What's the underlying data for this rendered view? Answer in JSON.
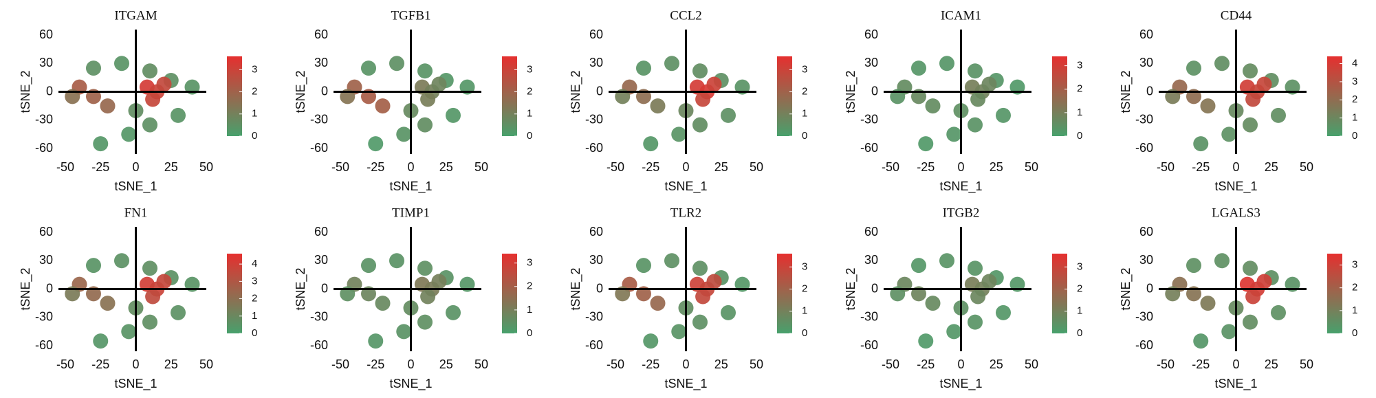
{
  "chart_data": [
    {
      "type": "scatter",
      "title": "ITGAM",
      "xlabel": "tSNE_1",
      "ylabel": "tSNE_2",
      "xlim": [
        -50,
        50
      ],
      "ylim": [
        -60,
        60
      ],
      "xticks": [
        -50,
        -25,
        0,
        25,
        50
      ],
      "yticks": [
        -60,
        -30,
        0,
        30,
        60
      ],
      "clim": [
        0,
        3.6
      ],
      "cticks": [
        0,
        1,
        2,
        3
      ],
      "colors": [
        "#48a06c",
        "#e5302f"
      ],
      "x": [
        -30,
        -10,
        10,
        25,
        40,
        -40,
        -30,
        -20,
        -45,
        8,
        15,
        20,
        12,
        0,
        10,
        -5,
        30,
        -25
      ],
      "y": [
        25,
        30,
        22,
        12,
        5,
        5,
        -5,
        -15,
        -5,
        5,
        0,
        8,
        -8,
        -20,
        -35,
        -45,
        -25,
        -55
      ],
      "values": [
        0.5,
        0.4,
        0.6,
        0.5,
        0.4,
        2.2,
        2.0,
        1.8,
        1.5,
        3.2,
        3.0,
        2.8,
        2.9,
        0.6,
        0.5,
        0.3,
        0.4,
        0.3
      ]
    },
    {
      "type": "scatter",
      "title": "TGFB1",
      "xlabel": "tSNE_1",
      "ylabel": "tSNE_2",
      "xlim": [
        -50,
        50
      ],
      "ylim": [
        -60,
        60
      ],
      "xticks": [
        -50,
        -25,
        0,
        25,
        50
      ],
      "yticks": [
        -60,
        -30,
        0,
        30,
        60
      ],
      "clim": [
        0,
        3.6
      ],
      "cticks": [
        0,
        1,
        2,
        3
      ],
      "colors": [
        "#48a06c",
        "#e5302f"
      ],
      "x": [
        -30,
        -10,
        10,
        25,
        40,
        -40,
        -30,
        -20,
        -45,
        8,
        15,
        20,
        12,
        0,
        10,
        -5,
        30,
        -25
      ],
      "y": [
        25,
        30,
        22,
        12,
        5,
        5,
        -5,
        -15,
        -5,
        5,
        0,
        8,
        -8,
        -20,
        -35,
        -45,
        -25,
        -55
      ],
      "values": [
        0.4,
        0.5,
        0.4,
        0.3,
        0.3,
        2.0,
        2.2,
        2.1,
        1.4,
        1.2,
        1.0,
        0.9,
        1.1,
        0.7,
        0.6,
        0.4,
        0.3,
        0.2
      ]
    },
    {
      "type": "scatter",
      "title": "CCL2",
      "xlabel": "tSNE_1",
      "ylabel": "tSNE_2",
      "xlim": [
        -50,
        50
      ],
      "ylim": [
        -60,
        60
      ],
      "xticks": [
        -50,
        -25,
        0,
        25,
        50
      ],
      "yticks": [
        -60,
        -30,
        0,
        30,
        60
      ],
      "clim": [
        0,
        3.6
      ],
      "cticks": [
        0,
        1,
        2,
        3
      ],
      "colors": [
        "#48a06c",
        "#e5302f"
      ],
      "x": [
        -30,
        -10,
        10,
        25,
        40,
        -40,
        -30,
        -20,
        -45,
        8,
        15,
        20,
        12,
        0,
        10,
        -5,
        30,
        -25
      ],
      "y": [
        25,
        30,
        22,
        12,
        5,
        5,
        -5,
        -15,
        -5,
        5,
        0,
        8,
        -8,
        -20,
        -35,
        -45,
        -25,
        -55
      ],
      "values": [
        0.4,
        0.5,
        0.6,
        0.5,
        0.4,
        1.8,
        1.6,
        1.2,
        1.0,
        3.2,
        3.3,
        3.0,
        2.9,
        0.8,
        0.6,
        0.4,
        0.5,
        0.3
      ]
    },
    {
      "type": "scatter",
      "title": "ICAM1",
      "xlabel": "tSNE_1",
      "ylabel": "tSNE_2",
      "xlim": [
        -50,
        50
      ],
      "ylim": [
        -60,
        60
      ],
      "xticks": [
        -50,
        -25,
        0,
        25,
        50
      ],
      "yticks": [
        -60,
        -30,
        0,
        30,
        60
      ],
      "clim": [
        0,
        3.4
      ],
      "cticks": [
        0,
        1,
        2,
        3
      ],
      "colors": [
        "#48a06c",
        "#e5302f"
      ],
      "x": [
        -30,
        -10,
        10,
        25,
        40,
        -40,
        -30,
        -20,
        -45,
        8,
        15,
        20,
        12,
        0,
        10,
        -5,
        30,
        -25
      ],
      "y": [
        25,
        30,
        22,
        12,
        5,
        5,
        -5,
        -15,
        -5,
        5,
        0,
        8,
        -8,
        -20,
        -35,
        -45,
        -25,
        -55
      ],
      "values": [
        0.3,
        0.3,
        0.4,
        0.3,
        0.2,
        0.6,
        0.7,
        0.6,
        0.4,
        1.0,
        0.9,
        0.8,
        0.7,
        0.5,
        0.4,
        0.3,
        0.3,
        0.2
      ]
    },
    {
      "type": "scatter",
      "title": "CD44",
      "xlabel": "tSNE_1",
      "ylabel": "tSNE_2",
      "xlim": [
        -50,
        50
      ],
      "ylim": [
        -60,
        60
      ],
      "xticks": [
        -50,
        -25,
        0,
        25,
        50
      ],
      "yticks": [
        -60,
        -30,
        0,
        30,
        60
      ],
      "clim": [
        0,
        4.4
      ],
      "cticks": [
        0,
        1,
        2,
        3,
        4
      ],
      "colors": [
        "#48a06c",
        "#e5302f"
      ],
      "x": [
        -30,
        -10,
        10,
        25,
        40,
        -40,
        -30,
        -20,
        -45,
        8,
        15,
        20,
        12,
        0,
        10,
        -5,
        30,
        -25
      ],
      "y": [
        25,
        30,
        22,
        12,
        5,
        5,
        -5,
        -15,
        -5,
        5,
        0,
        8,
        -8,
        -20,
        -35,
        -45,
        -25,
        -55
      ],
      "values": [
        0.6,
        0.7,
        0.8,
        0.7,
        0.6,
        2.2,
        2.0,
        1.7,
        1.4,
        3.8,
        3.6,
        3.5,
        3.4,
        0.9,
        0.8,
        0.6,
        0.7,
        0.5
      ]
    },
    {
      "type": "scatter",
      "title": "FN1",
      "xlabel": "tSNE_1",
      "ylabel": "tSNE_2",
      "xlim": [
        -50,
        50
      ],
      "ylim": [
        -60,
        60
      ],
      "xticks": [
        -50,
        -25,
        0,
        25,
        50
      ],
      "yticks": [
        -60,
        -30,
        0,
        30,
        60
      ],
      "clim": [
        0,
        4.6
      ],
      "cticks": [
        0,
        1,
        2,
        3,
        4
      ],
      "colors": [
        "#48a06c",
        "#e5302f"
      ],
      "x": [
        -30,
        -10,
        10,
        25,
        40,
        -40,
        -30,
        -20,
        -45,
        8,
        15,
        20,
        12,
        0,
        10,
        -5,
        30,
        -25
      ],
      "y": [
        25,
        30,
        22,
        12,
        5,
        5,
        -5,
        -15,
        -5,
        5,
        0,
        8,
        -8,
        -20,
        -35,
        -45,
        -25,
        -55
      ],
      "values": [
        0.5,
        0.6,
        0.7,
        0.6,
        0.5,
        2.4,
        2.2,
        1.9,
        1.5,
        4.0,
        3.8,
        3.6,
        3.5,
        0.8,
        0.7,
        0.5,
        0.6,
        0.4
      ]
    },
    {
      "type": "scatter",
      "title": "TIMP1",
      "xlabel": "tSNE_1",
      "ylabel": "tSNE_2",
      "xlim": [
        -50,
        50
      ],
      "ylim": [
        -60,
        60
      ],
      "xticks": [
        -50,
        -25,
        0,
        25,
        50
      ],
      "yticks": [
        -60,
        -30,
        0,
        30,
        60
      ],
      "clim": [
        0,
        3.4
      ],
      "cticks": [
        0,
        1,
        2,
        3
      ],
      "colors": [
        "#48a06c",
        "#e5302f"
      ],
      "x": [
        -30,
        -10,
        10,
        25,
        40,
        -40,
        -30,
        -20,
        -45,
        8,
        15,
        20,
        12,
        0,
        10,
        -5,
        30,
        -25
      ],
      "y": [
        25,
        30,
        22,
        12,
        5,
        5,
        -5,
        -15,
        -5,
        5,
        0,
        8,
        -8,
        -20,
        -35,
        -45,
        -25,
        -55
      ],
      "values": [
        0.4,
        0.4,
        0.5,
        0.4,
        0.3,
        0.9,
        0.8,
        0.7,
        0.5,
        1.2,
        1.1,
        1.0,
        0.9,
        0.6,
        0.5,
        0.4,
        0.4,
        0.3
      ]
    },
    {
      "type": "scatter",
      "title": "TLR2",
      "xlabel": "tSNE_1",
      "ylabel": "tSNE_2",
      "xlim": [
        -50,
        50
      ],
      "ylim": [
        -60,
        60
      ],
      "xticks": [
        -50,
        -25,
        0,
        25,
        50
      ],
      "yticks": [
        -60,
        -30,
        0,
        30,
        60
      ],
      "clim": [
        0,
        3.6
      ],
      "cticks": [
        0,
        1,
        2,
        3
      ],
      "colors": [
        "#48a06c",
        "#e5302f"
      ],
      "x": [
        -30,
        -10,
        10,
        25,
        40,
        -40,
        -30,
        -20,
        -45,
        8,
        15,
        20,
        12,
        0,
        10,
        -5,
        30,
        -25
      ],
      "y": [
        25,
        30,
        22,
        12,
        5,
        5,
        -5,
        -15,
        -5,
        5,
        0,
        8,
        -8,
        -20,
        -35,
        -45,
        -25,
        -55
      ],
      "values": [
        0.4,
        0.5,
        0.5,
        0.4,
        0.3,
        2.2,
        2.0,
        1.8,
        1.3,
        3.0,
        2.9,
        2.7,
        2.8,
        0.6,
        0.5,
        0.4,
        0.4,
        0.3
      ]
    },
    {
      "type": "scatter",
      "title": "ITGB2",
      "xlabel": "tSNE_1",
      "ylabel": "tSNE_2",
      "xlim": [
        -50,
        50
      ],
      "ylim": [
        -60,
        60
      ],
      "xticks": [
        -50,
        -25,
        0,
        25,
        50
      ],
      "yticks": [
        -60,
        -30,
        0,
        30,
        60
      ],
      "clim": [
        0,
        3.6
      ],
      "cticks": [
        0,
        1,
        2,
        3
      ],
      "colors": [
        "#48a06c",
        "#e5302f"
      ],
      "x": [
        -30,
        -10,
        10,
        25,
        40,
        -40,
        -30,
        -20,
        -45,
        8,
        15,
        20,
        12,
        0,
        10,
        -5,
        30,
        -25
      ],
      "y": [
        25,
        30,
        22,
        12,
        5,
        5,
        -5,
        -15,
        -5,
        5,
        0,
        8,
        -8,
        -20,
        -35,
        -45,
        -25,
        -55
      ],
      "values": [
        0.3,
        0.4,
        0.4,
        0.3,
        0.3,
        0.8,
        0.9,
        0.7,
        0.5,
        1.1,
        1.0,
        0.9,
        0.8,
        0.5,
        0.4,
        0.3,
        0.3,
        0.2
      ]
    },
    {
      "type": "scatter",
      "title": "LGALS3",
      "xlabel": "tSNE_1",
      "ylabel": "tSNE_2",
      "xlim": [
        -50,
        50
      ],
      "ylim": [
        -60,
        60
      ],
      "xticks": [
        -50,
        -25,
        0,
        25,
        50
      ],
      "yticks": [
        -60,
        -30,
        0,
        30,
        60
      ],
      "clim": [
        0,
        3.5
      ],
      "cticks": [
        0,
        1,
        2,
        3
      ],
      "colors": [
        "#48a06c",
        "#e5302f"
      ],
      "x": [
        -30,
        -10,
        10,
        25,
        40,
        -40,
        -30,
        -20,
        -45,
        8,
        15,
        20,
        12,
        0,
        10,
        -5,
        30,
        -25
      ],
      "y": [
        25,
        30,
        22,
        12,
        5,
        5,
        -5,
        -15,
        -5,
        5,
        0,
        8,
        -8,
        -20,
        -35,
        -45,
        -25,
        -55
      ],
      "values": [
        0.5,
        0.5,
        0.6,
        0.5,
        0.4,
        1.5,
        1.4,
        1.2,
        1.0,
        3.3,
        3.1,
        3.0,
        2.9,
        0.7,
        0.6,
        0.4,
        0.5,
        0.3
      ]
    }
  ]
}
